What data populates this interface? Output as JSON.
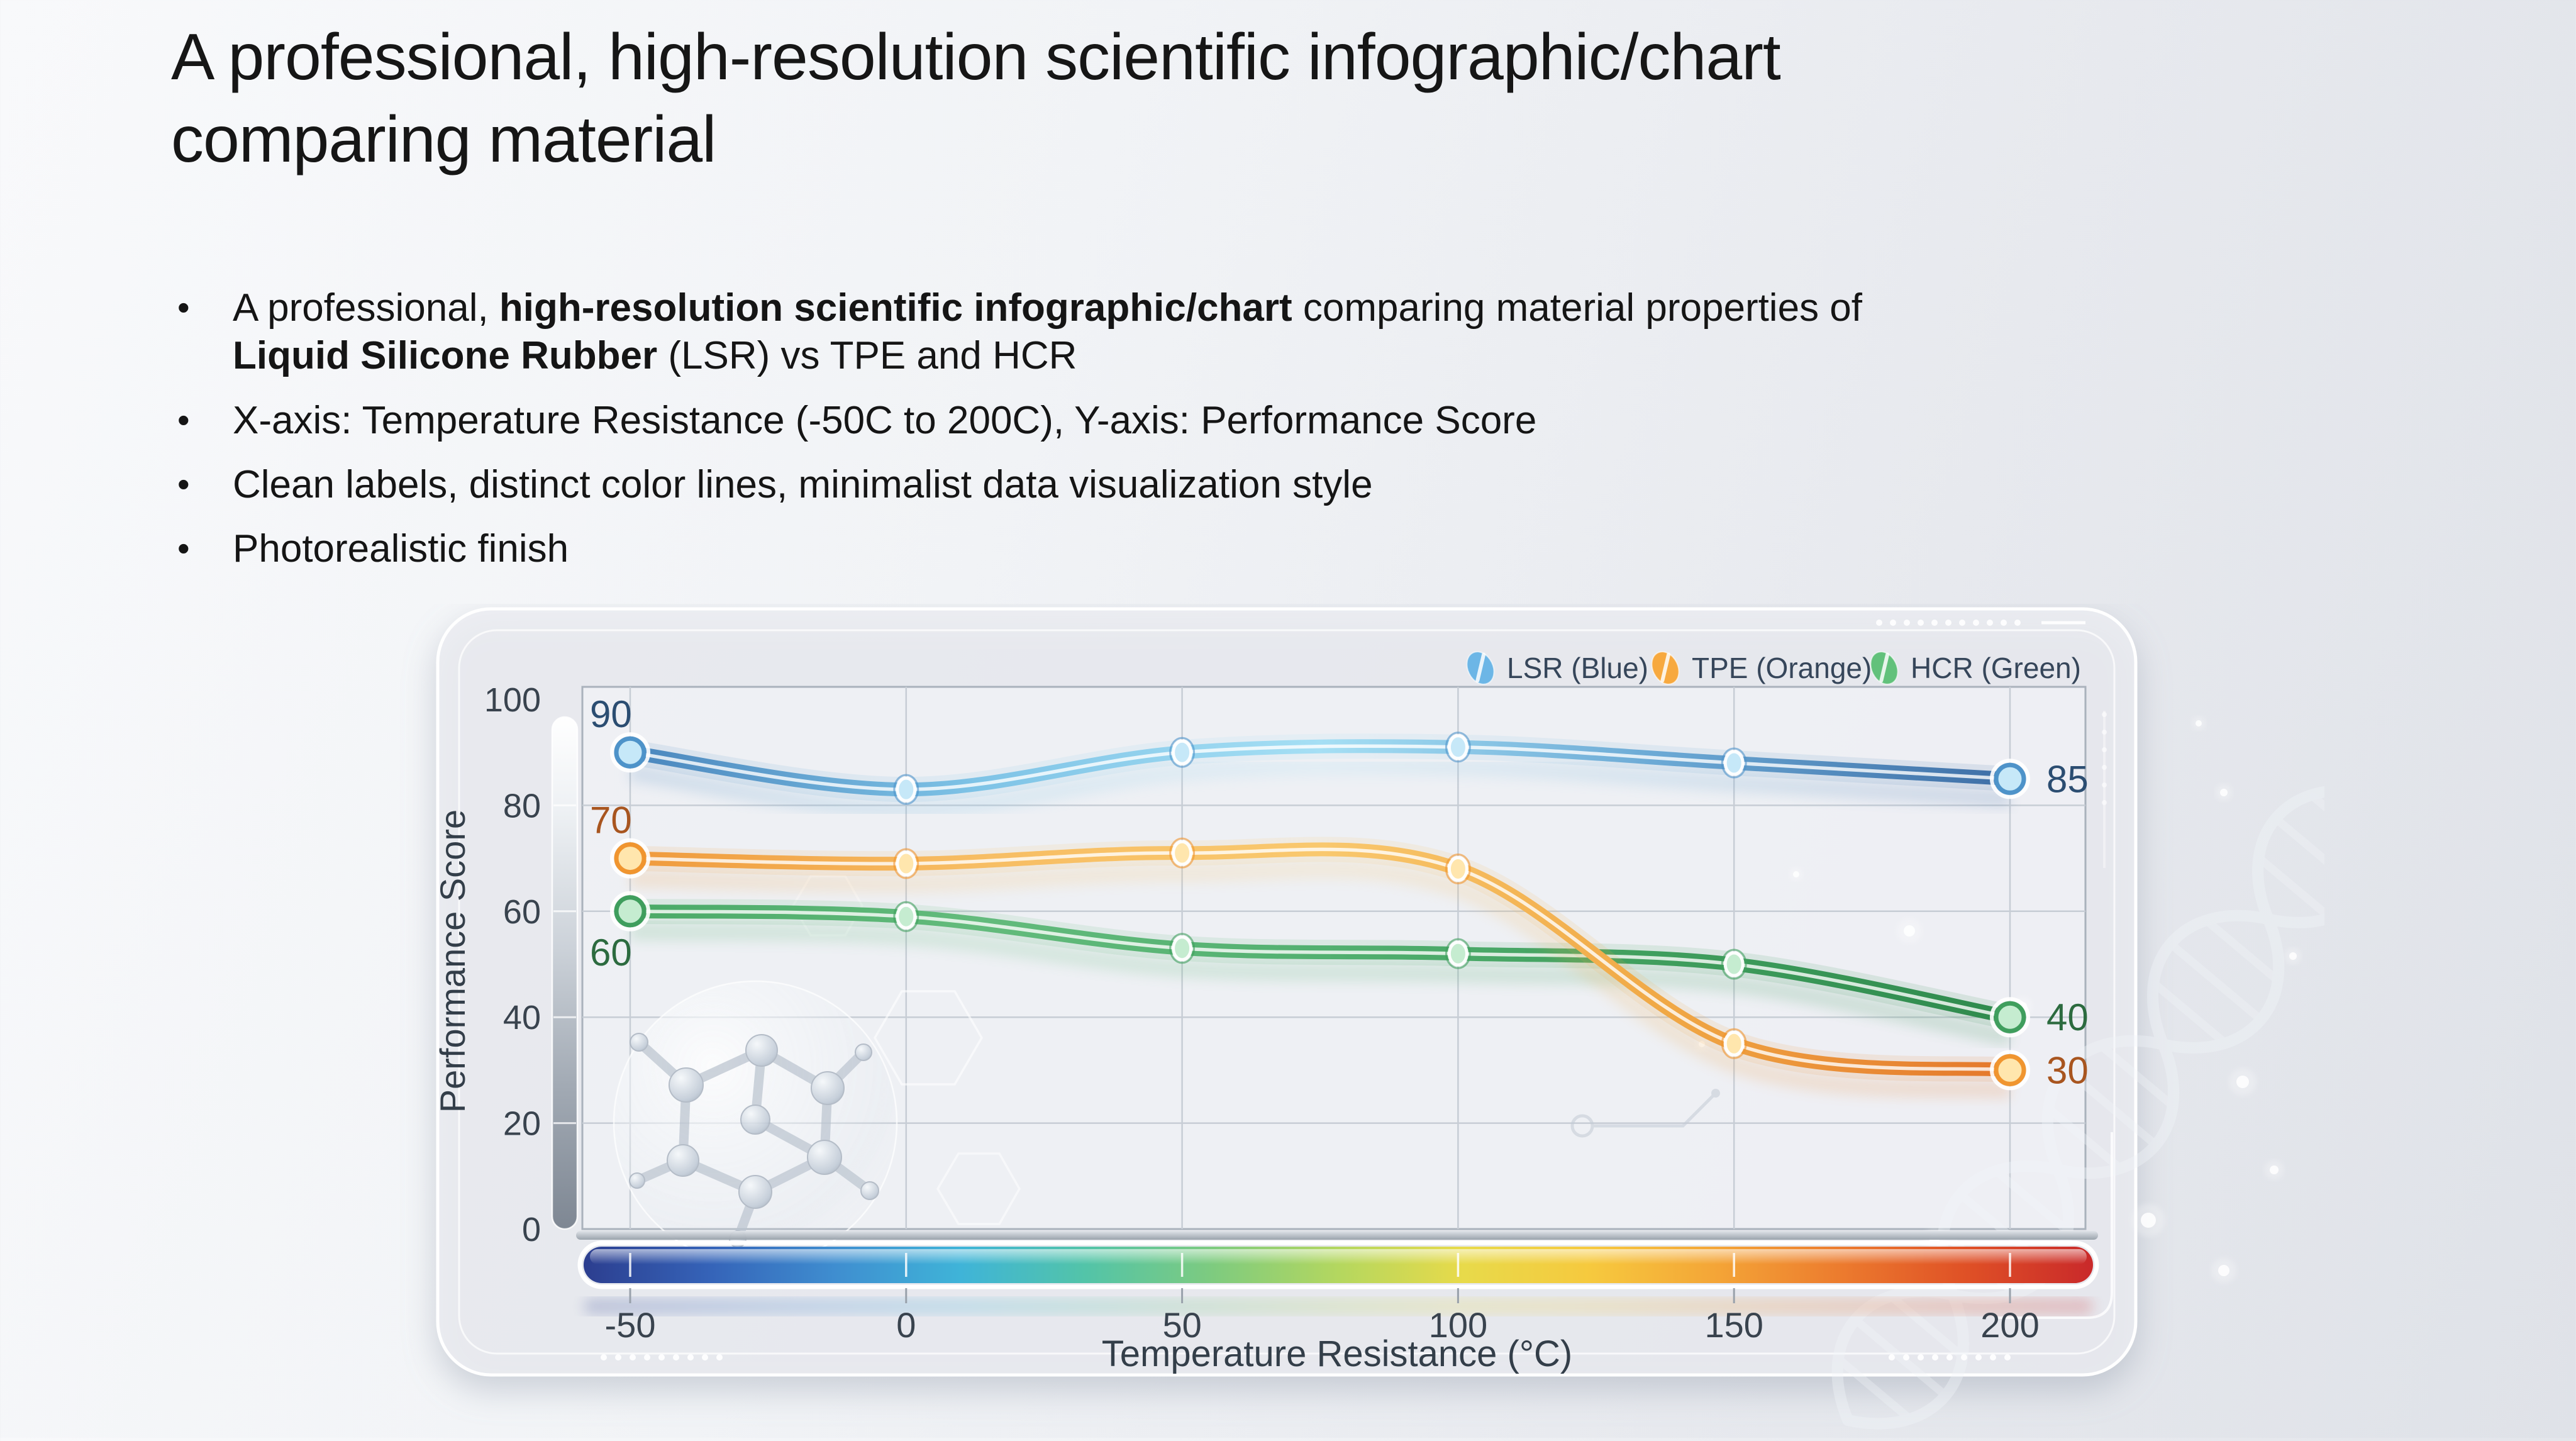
{
  "slide": {
    "title_lines": [
      "A professional, high-resolution scientific infographic/chart",
      "comparing material"
    ],
    "bullets": [
      {
        "lines": [
          [
            {
              "text": "A professional, ",
              "bold": false
            },
            {
              "text": "high-resolution scientific infographic/chart",
              "bold": true
            },
            {
              "text": " comparing material properties of",
              "bold": false
            }
          ],
          [
            {
              "text": "Liquid Silicone Rubber",
              "bold": true
            },
            {
              "text": " (LSR) vs TPE and HCR",
              "bold": false
            }
          ]
        ]
      },
      {
        "lines": [
          [
            {
              "text": "X-axis: Temperature Resistance (-50C to 200C), Y-axis: Performance Score",
              "bold": false
            }
          ]
        ]
      },
      {
        "lines": [
          [
            {
              "text": "Clean labels, distinct color lines, minimalist data visualization style",
              "bold": false
            }
          ]
        ]
      },
      {
        "lines": [
          [
            {
              "text": "Photorealistic finish",
              "bold": false
            }
          ]
        ]
      }
    ]
  },
  "chart_data": {
    "type": "line",
    "x": [
      -50,
      0,
      50,
      100,
      150,
      200
    ],
    "series": [
      {
        "name": "LSR (Blue)",
        "values": [
          90,
          83,
          90,
          91,
          88,
          85
        ],
        "color": "#4e93c9",
        "light": "#c6e8f8",
        "gradient": [
          "#4a86bd",
          "#7ec3e6",
          "#a5dff4",
          "#6aa8d4",
          "#3e6ea6"
        ],
        "label_color": "#2b4d71",
        "start_label": "90",
        "end_label": "85",
        "start_label_pos": "above",
        "legend_color": "#6cb6e6"
      },
      {
        "name": "TPE (Orange)",
        "values": [
          70,
          69,
          71,
          68,
          35,
          30
        ],
        "color": "#f0952f",
        "light": "#ffe6ad",
        "gradient": [
          "#ef9a3c",
          "#f7bd63",
          "#f9c86e",
          "#f0a845",
          "#e4772b"
        ],
        "label_color": "#a8551f",
        "start_label": "70",
        "end_label": "30",
        "start_label_pos": "above",
        "legend_color": "#f7a93f"
      },
      {
        "name": "HCR (Green)",
        "values": [
          60,
          59,
          53,
          52,
          50,
          40
        ],
        "color": "#3f9e5d",
        "light": "#c5ecd0",
        "gradient": [
          "#4aa967",
          "#63bb7c",
          "#52b070",
          "#3f9e5d",
          "#2f8a4d"
        ],
        "label_color": "#2c6b3f",
        "start_label": "60",
        "end_label": "40",
        "start_label_pos": "below",
        "legend_color": "#62c17b"
      }
    ],
    "xlabel": "Temperature Resistance (°C)",
    "ylabel": "Performance Score",
    "x_ticks": [
      "-50",
      "0",
      "50",
      "100",
      "150",
      "200"
    ],
    "y_ticks": [
      "0",
      "20",
      "40",
      "60",
      "80",
      "100"
    ],
    "xlim": [
      -50,
      200
    ],
    "ylim": [
      0,
      100
    ],
    "grid": true,
    "legend_position": "top-right",
    "colorbar_gradient": [
      "#2c3e8f",
      "#3563b8",
      "#3f8ed0",
      "#3fb4d8",
      "#53c4a8",
      "#7ecb7f",
      "#b4d75f",
      "#e8da4a",
      "#f6c93e",
      "#f4a537",
      "#ec7b2e",
      "#df5026",
      "#c9292a"
    ]
  }
}
